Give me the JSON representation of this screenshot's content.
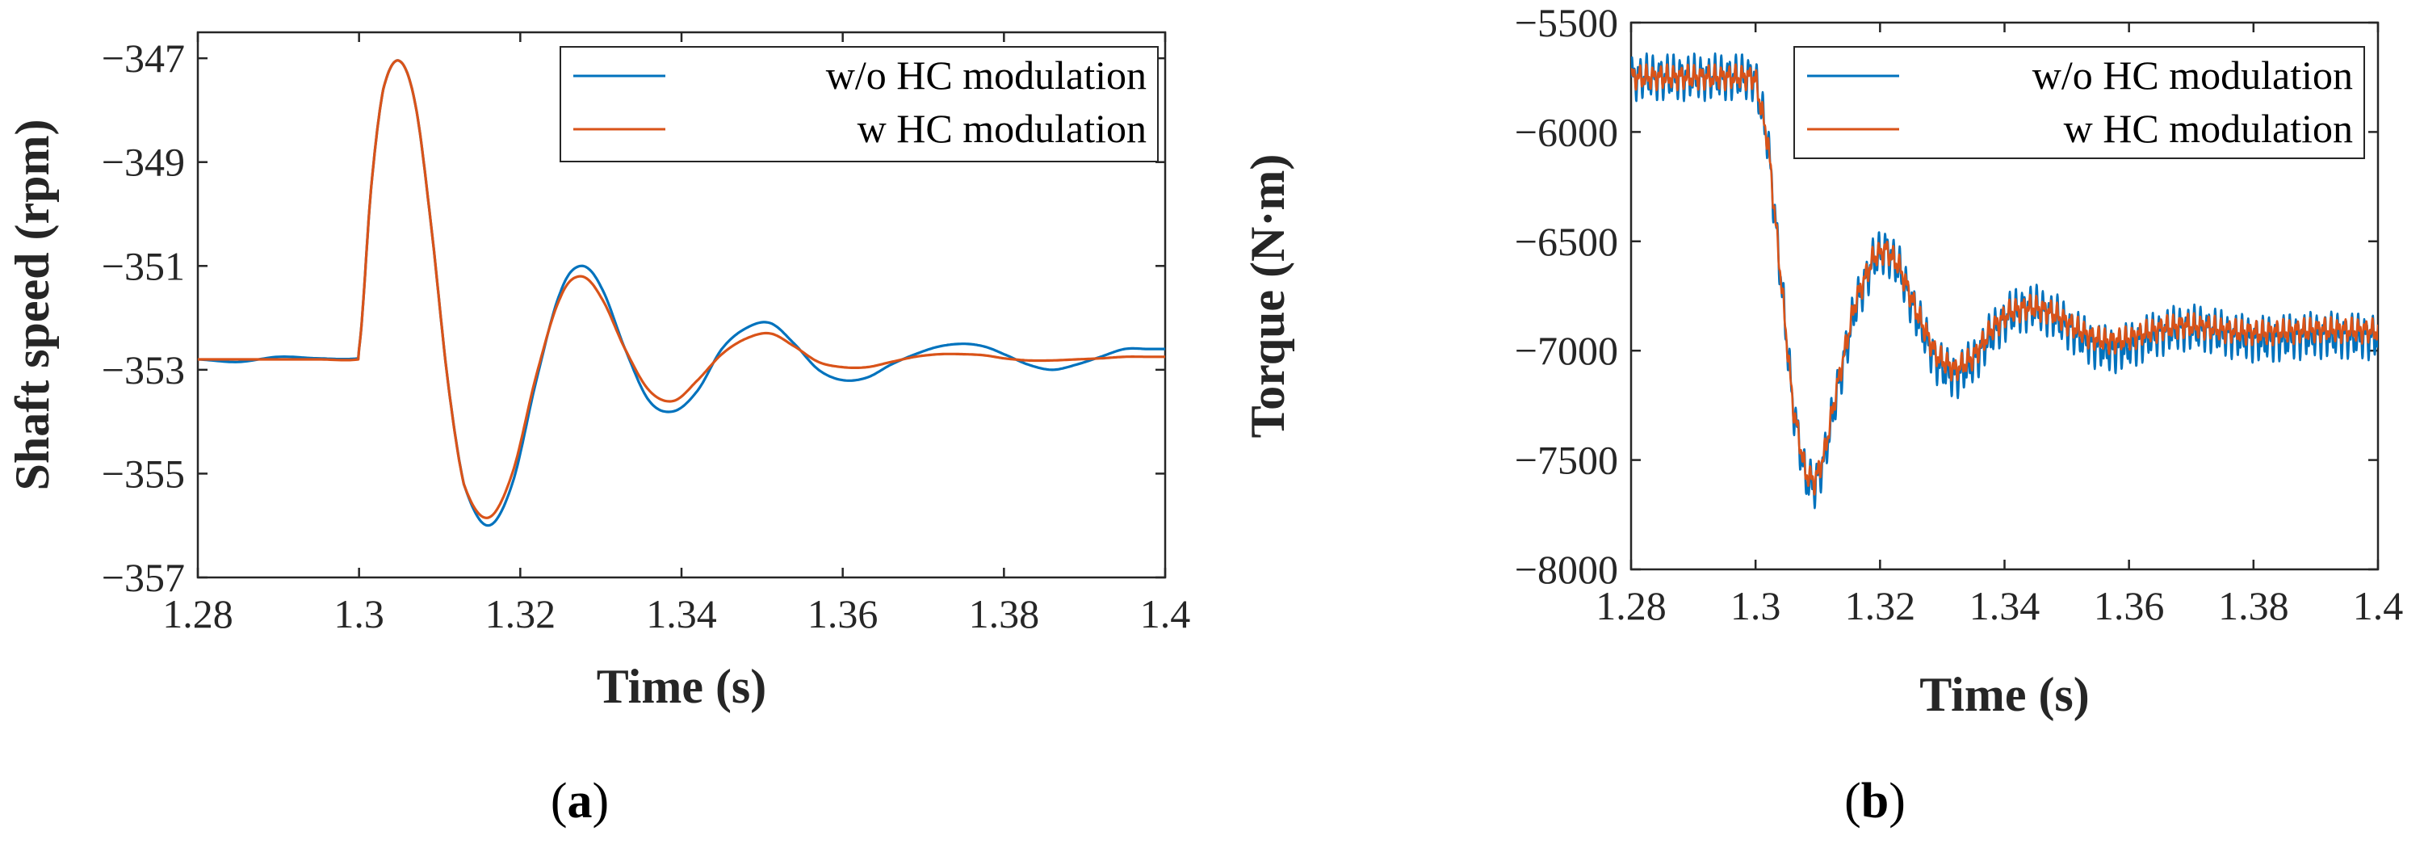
{
  "chart_data": [
    {
      "type": "line",
      "caption_letter": "a",
      "xlabel": "Time (s)",
      "ylabel": "Shaft speed (rpm)",
      "xlim": [
        1.28,
        1.4
      ],
      "ylim": [
        -357,
        -346.5
      ],
      "xticks": [
        1.28,
        1.3,
        1.32,
        1.34,
        1.36,
        1.38,
        1.4
      ],
      "xtick_labels": [
        "1.28",
        "1.3",
        "1.32",
        "1.34",
        "1.36",
        "1.38",
        "1.4"
      ],
      "yticks": [
        -347,
        -349,
        -351,
        -353,
        -355,
        -357
      ],
      "ytick_labels": [
        "−347",
        "−349",
        "−351",
        "−353",
        "−355",
        "−357"
      ],
      "legend_position": "top-right",
      "series": [
        {
          "name": "w/o HC modulation",
          "color": "#0072BD",
          "x": [
            1.28,
            1.285,
            1.29,
            1.295,
            1.2999,
            1.3,
            1.3015,
            1.303,
            1.305,
            1.307,
            1.309,
            1.311,
            1.313,
            1.316,
            1.319,
            1.322,
            1.325,
            1.3275,
            1.33,
            1.333,
            1.336,
            1.339,
            1.342,
            1.345,
            1.348,
            1.351,
            1.354,
            1.357,
            1.36,
            1.363,
            1.366,
            1.369,
            1.372,
            1.375,
            1.3775,
            1.38,
            1.383,
            1.386,
            1.389,
            1.392,
            1.395,
            1.398,
            1.4
          ],
          "y": [
            -352.8,
            -352.85,
            -352.75,
            -352.78,
            -352.78,
            -352.6,
            -349.5,
            -347.6,
            -347.05,
            -347.9,
            -350.3,
            -353.2,
            -355.2,
            -356.0,
            -355.2,
            -353.2,
            -351.5,
            -351.0,
            -351.4,
            -352.6,
            -353.6,
            -353.8,
            -353.4,
            -352.6,
            -352.2,
            -352.1,
            -352.5,
            -353.0,
            -353.2,
            -353.15,
            -352.9,
            -352.7,
            -352.55,
            -352.5,
            -352.55,
            -352.7,
            -352.9,
            -353.0,
            -352.9,
            -352.75,
            -352.6,
            -352.6,
            -352.6
          ]
        },
        {
          "name": "w HC modulation",
          "color": "#D95319",
          "x": [
            1.28,
            1.285,
            1.29,
            1.295,
            1.2999,
            1.3,
            1.3015,
            1.303,
            1.305,
            1.307,
            1.309,
            1.311,
            1.313,
            1.316,
            1.319,
            1.322,
            1.325,
            1.3275,
            1.33,
            1.333,
            1.336,
            1.339,
            1.342,
            1.345,
            1.348,
            1.351,
            1.354,
            1.357,
            1.36,
            1.363,
            1.366,
            1.369,
            1.372,
            1.375,
            1.3775,
            1.38,
            1.383,
            1.386,
            1.389,
            1.392,
            1.395,
            1.398,
            1.4
          ],
          "y": [
            -352.8,
            -352.8,
            -352.8,
            -352.8,
            -352.8,
            -352.6,
            -349.5,
            -347.6,
            -347.05,
            -347.9,
            -350.3,
            -353.2,
            -355.2,
            -355.85,
            -355.0,
            -353.1,
            -351.6,
            -351.2,
            -351.6,
            -352.6,
            -353.4,
            -353.6,
            -353.2,
            -352.7,
            -352.4,
            -352.3,
            -352.55,
            -352.85,
            -352.95,
            -352.95,
            -352.85,
            -352.75,
            -352.7,
            -352.7,
            -352.72,
            -352.78,
            -352.82,
            -352.82,
            -352.8,
            -352.78,
            -352.75,
            -352.75,
            -352.75
          ]
        }
      ]
    },
    {
      "type": "line",
      "caption_letter": "b",
      "xlabel": "Time (s)",
      "ylabel": "Torque (N·m)",
      "xlim": [
        1.28,
        1.4
      ],
      "ylim": [
        -8000,
        -5500
      ],
      "xticks": [
        1.28,
        1.3,
        1.32,
        1.34,
        1.36,
        1.38,
        1.4
      ],
      "xtick_labels": [
        "1.28",
        "1.3",
        "1.32",
        "1.34",
        "1.36",
        "1.38",
        "1.4"
      ],
      "yticks": [
        -5500,
        -6000,
        -6500,
        -7000,
        -7500,
        -8000
      ],
      "ytick_labels": [
        "−5500",
        "−6000",
        "−6500",
        "−7000",
        "−7500",
        "−8000"
      ],
      "legend_position": "top-right",
      "series": [
        {
          "name": "w/o HC modulation",
          "color": "#0072BD",
          "ripple": 110,
          "x": [
            1.28,
            1.29,
            1.2995,
            1.3,
            1.302,
            1.304,
            1.306,
            1.308,
            1.3095,
            1.311,
            1.313,
            1.316,
            1.319,
            1.321,
            1.323,
            1.326,
            1.329,
            1.332,
            1.335,
            1.338,
            1.341,
            1.3445,
            1.348,
            1.351,
            1.354,
            1.357,
            1.36,
            1.363,
            1.366,
            1.369,
            1.372,
            1.375,
            1.378,
            1.381,
            1.384,
            1.387,
            1.39,
            1.393,
            1.396,
            1.4
          ],
          "y": [
            -5750,
            -5750,
            -5750,
            -5760,
            -6050,
            -6650,
            -7250,
            -7580,
            -7620,
            -7500,
            -7200,
            -6800,
            -6580,
            -6540,
            -6620,
            -6850,
            -7050,
            -7120,
            -7050,
            -6920,
            -6830,
            -6800,
            -6840,
            -6910,
            -6970,
            -7000,
            -6980,
            -6940,
            -6910,
            -6895,
            -6900,
            -6920,
            -6940,
            -6950,
            -6945,
            -6935,
            -6930,
            -6930,
            -6935,
            -6935
          ]
        },
        {
          "name": "w HC modulation",
          "color": "#D95319",
          "ripple": 60,
          "x": [
            1.28,
            1.29,
            1.2995,
            1.3,
            1.302,
            1.304,
            1.306,
            1.308,
            1.3095,
            1.311,
            1.313,
            1.316,
            1.319,
            1.321,
            1.323,
            1.326,
            1.329,
            1.332,
            1.335,
            1.338,
            1.341,
            1.3445,
            1.348,
            1.351,
            1.354,
            1.357,
            1.36,
            1.363,
            1.366,
            1.369,
            1.372,
            1.375,
            1.378,
            1.381,
            1.384,
            1.387,
            1.39,
            1.393,
            1.396,
            1.4
          ],
          "y": [
            -5750,
            -5750,
            -5750,
            -5760,
            -6050,
            -6650,
            -7250,
            -7560,
            -7600,
            -7480,
            -7180,
            -6780,
            -6570,
            -6540,
            -6610,
            -6830,
            -7020,
            -7090,
            -7030,
            -6900,
            -6820,
            -6800,
            -6830,
            -6890,
            -6940,
            -6960,
            -6945,
            -6915,
            -6895,
            -6885,
            -6890,
            -6905,
            -6915,
            -6920,
            -6915,
            -6910,
            -6905,
            -6905,
            -6908,
            -6910
          ]
        }
      ]
    }
  ]
}
